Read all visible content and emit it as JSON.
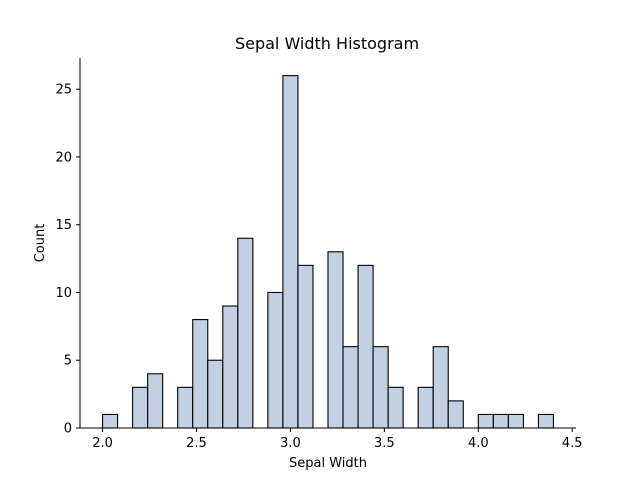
{
  "chart_data": {
    "type": "bar",
    "title": "Sepal Width Histogram",
    "xlabel": "Sepal Width",
    "ylabel": "Count",
    "xlim": [
      1.88,
      4.52
    ],
    "ylim": [
      0,
      27.3
    ],
    "xticks": [
      "2.0",
      "2.5",
      "3.0",
      "3.5",
      "4.0",
      "4.5"
    ],
    "xtick_values": [
      2.0,
      2.5,
      3.0,
      3.5,
      4.0,
      4.5
    ],
    "yticks": [
      "0",
      "5",
      "10",
      "15",
      "20",
      "25"
    ],
    "ytick_values": [
      0,
      5,
      10,
      15,
      20,
      25
    ],
    "bin_start": 2.0,
    "bin_width": 0.08,
    "values": [
      1,
      0,
      3,
      4,
      0,
      3,
      8,
      5,
      9,
      14,
      0,
      10,
      26,
      12,
      0,
      13,
      6,
      12,
      6,
      3,
      0,
      3,
      6,
      2,
      0,
      1,
      1,
      1,
      0,
      1
    ],
    "bar_color": "#c3d0e2",
    "edge_color": "#000000",
    "grid": false,
    "spines": [
      "left",
      "bottom"
    ]
  }
}
